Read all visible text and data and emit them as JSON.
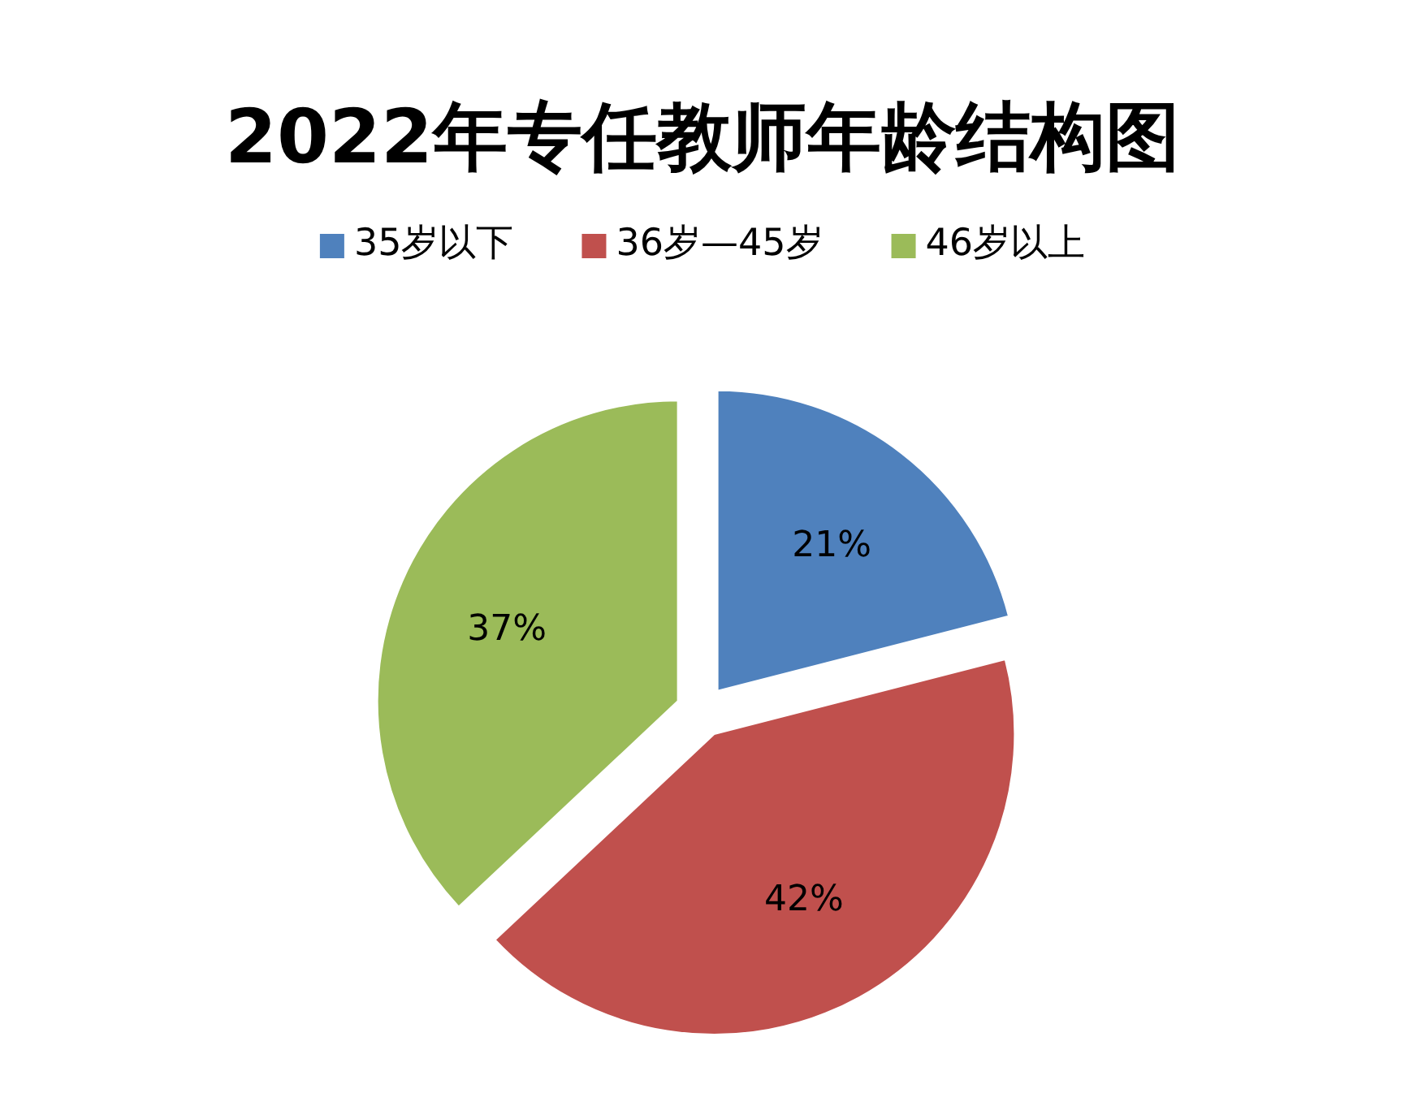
{
  "chart_data": {
    "type": "pie",
    "title": "2022年专任教师年龄结构图",
    "categories": [
      "35岁以下",
      "36岁—45岁",
      "46岁以上"
    ],
    "values": [
      21,
      42,
      37
    ],
    "colors": [
      "#4f81bd",
      "#c0504d",
      "#9bbb59"
    ],
    "value_labels": [
      "21%",
      "42%",
      "37%"
    ],
    "legend": "top"
  }
}
